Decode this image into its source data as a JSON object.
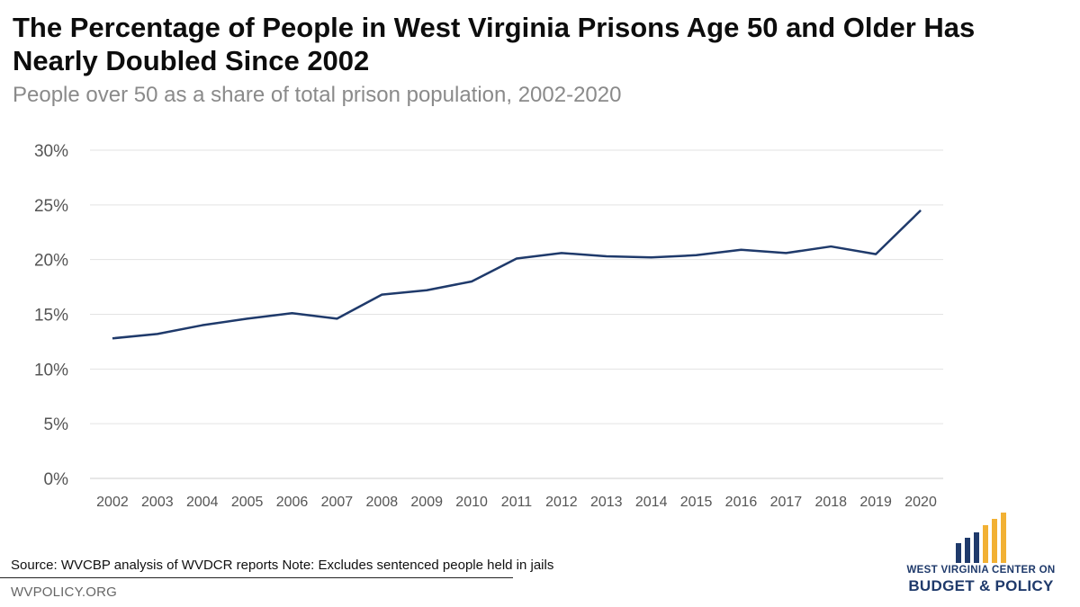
{
  "chart_data": {
    "type": "line",
    "title": "The Percentage of People in West Virginia Prisons Age 50 and Older Has Nearly Doubled Since 2002",
    "subtitle": "People over 50 as a share of total prison population, 2002-2020",
    "categories": [
      "2002",
      "2003",
      "2004",
      "2005",
      "2006",
      "2007",
      "2008",
      "2009",
      "2010",
      "2011",
      "2012",
      "2013",
      "2014",
      "2015",
      "2016",
      "2017",
      "2018",
      "2019",
      "2020"
    ],
    "values": [
      12.8,
      13.2,
      14.0,
      14.6,
      15.1,
      14.6,
      16.8,
      17.2,
      18.0,
      20.1,
      20.6,
      20.3,
      20.2,
      20.4,
      20.9,
      20.6,
      21.2,
      20.5,
      24.5
    ],
    "ylim": [
      0,
      30
    ],
    "yticks": [
      "0%",
      "5%",
      "10%",
      "15%",
      "20%",
      "25%",
      "30%"
    ],
    "ytick_values": [
      0,
      5,
      10,
      15,
      20,
      25,
      30
    ],
    "grid": true,
    "line_color": "#1f3a6b",
    "grid_color": "#e3e3e3"
  },
  "footer": {
    "source": "Source: WVCBP analysis of WVDCR reports   Note: Excludes sentenced people held in jails",
    "site": "WVPOLICY.ORG"
  },
  "logo": {
    "line1": "WEST VIRGINIA CENTER ON",
    "line2": "BUDGET & POLICY",
    "navy": "#1f3a6b",
    "gold": "#f2b134"
  }
}
